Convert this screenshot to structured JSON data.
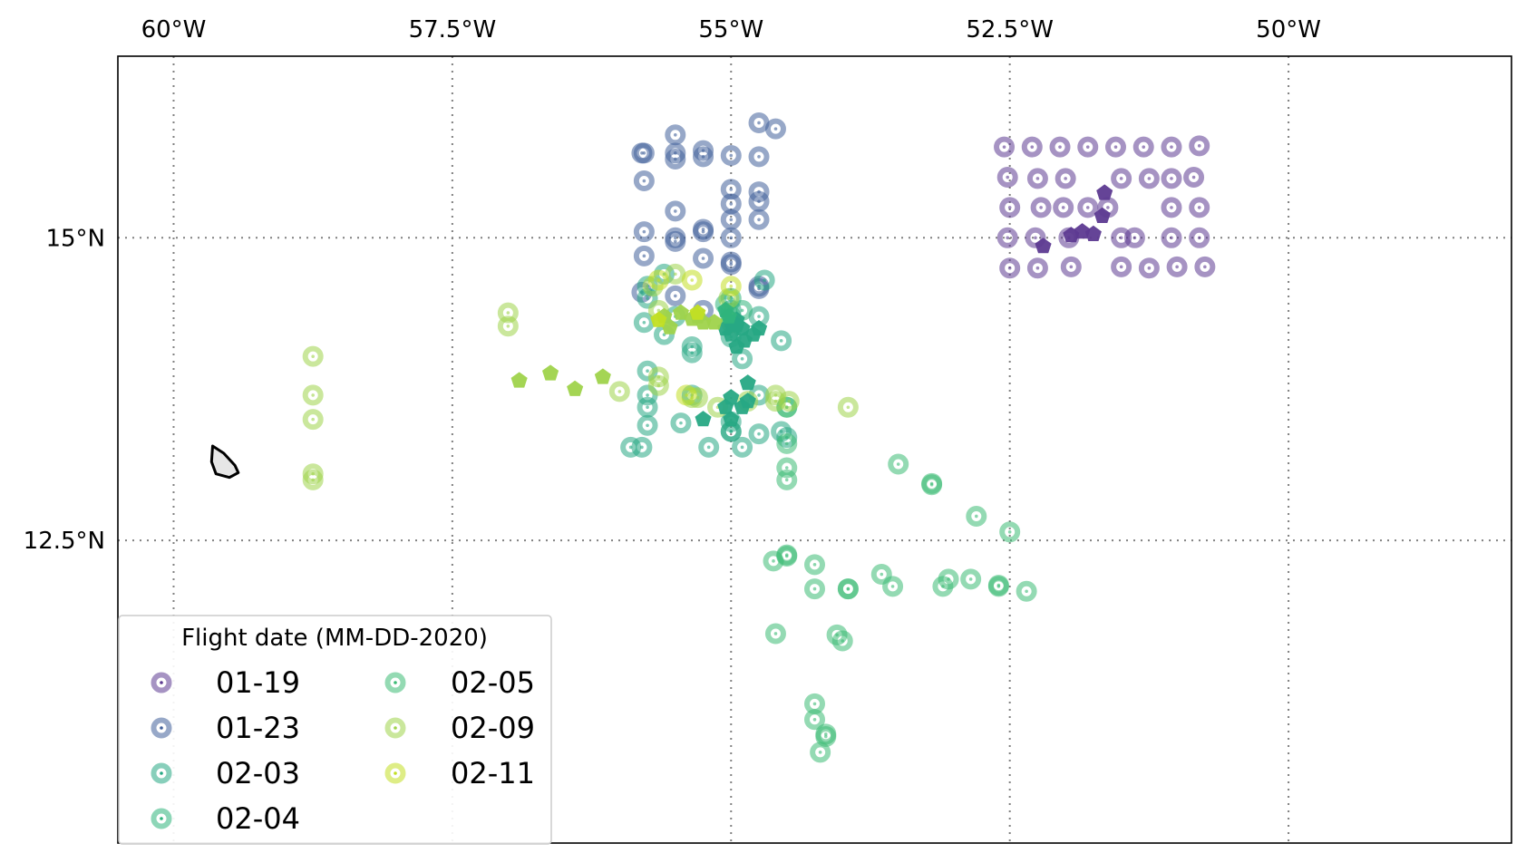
{
  "chart_data": {
    "type": "scatter",
    "projection": "PlateCarree",
    "xlim": [
      -60.5,
      -48.0
    ],
    "ylim": [
      10.0,
      16.5
    ],
    "grid": true,
    "x_ticks": [
      {
        "value": -60,
        "label": "60°W"
      },
      {
        "value": -57.5,
        "label": "57.5°W"
      },
      {
        "value": -55,
        "label": "55°W"
      },
      {
        "value": -52.5,
        "label": "52.5°W"
      },
      {
        "value": -50,
        "label": "50°W"
      }
    ],
    "y_ticks": [
      {
        "value": 15,
        "label": "15°N"
      },
      {
        "value": 12.5,
        "label": "12.5°N"
      }
    ],
    "legend": {
      "title": "Flight date (MM-DD-2020)",
      "location": "lower-left",
      "columns": 2,
      "entries": [
        {
          "label": "01-19",
          "color": "#5d3a91"
        },
        {
          "label": "01-23",
          "color": "#41609a"
        },
        {
          "label": "02-03",
          "color": "#27a884"
        },
        {
          "label": "02-04",
          "color": "#2fb47c"
        },
        {
          "label": "02-05",
          "color": "#3cbb75"
        },
        {
          "label": "02-09",
          "color": "#9fd34b"
        },
        {
          "label": "02-11",
          "color": "#c2df23"
        }
      ]
    },
    "island_outline": [
      [
        -59.65,
        13.28
      ],
      [
        -59.55,
        13.22
      ],
      [
        -59.45,
        13.12
      ],
      [
        -59.42,
        13.06
      ],
      [
        -59.5,
        13.02
      ],
      [
        -59.62,
        13.05
      ],
      [
        -59.66,
        13.15
      ]
    ],
    "series": [
      {
        "name": "01-19",
        "color": "#5d3a91",
        "circles": [
          [
            -52.55,
            15.75
          ],
          [
            -52.3,
            15.75
          ],
          [
            -52.05,
            15.75
          ],
          [
            -51.8,
            15.75
          ],
          [
            -51.55,
            15.75
          ],
          [
            -51.3,
            15.75
          ],
          [
            -51.05,
            15.75
          ],
          [
            -50.8,
            15.76
          ],
          [
            -52.52,
            15.5
          ],
          [
            -52.25,
            15.49
          ],
          [
            -52.0,
            15.49
          ],
          [
            -51.5,
            15.49
          ],
          [
            -51.25,
            15.49
          ],
          [
            -51.05,
            15.49
          ],
          [
            -50.85,
            15.5
          ],
          [
            -52.5,
            15.25
          ],
          [
            -52.22,
            15.25
          ],
          [
            -52.02,
            15.25
          ],
          [
            -51.8,
            15.25
          ],
          [
            -51.62,
            15.25
          ],
          [
            -51.05,
            15.25
          ],
          [
            -50.8,
            15.25
          ],
          [
            -52.52,
            15.0
          ],
          [
            -52.27,
            15.0
          ],
          [
            -51.97,
            15.0
          ],
          [
            -51.5,
            15.0
          ],
          [
            -51.38,
            15.0
          ],
          [
            -51.05,
            15.0
          ],
          [
            -50.8,
            15.0
          ],
          [
            -52.5,
            14.75
          ],
          [
            -52.25,
            14.75
          ],
          [
            -51.95,
            14.76
          ],
          [
            -51.5,
            14.76
          ],
          [
            -51.25,
            14.75
          ],
          [
            -51.0,
            14.76
          ],
          [
            -50.75,
            14.76
          ]
        ],
        "pentagons": [
          [
            -51.65,
            15.37
          ],
          [
            -51.67,
            15.18
          ],
          [
            -52.2,
            14.93
          ],
          [
            -51.95,
            15.02
          ],
          [
            -51.85,
            15.05
          ],
          [
            -51.75,
            15.03
          ]
        ]
      },
      {
        "name": "01-23",
        "color": "#41609a",
        "circles": [
          [
            -55.8,
            15.7
          ],
          [
            -55.78,
            15.7
          ],
          [
            -55.5,
            15.85
          ],
          [
            -55.5,
            15.65
          ],
          [
            -55.5,
            15.7
          ],
          [
            -55.25,
            15.72
          ],
          [
            -55.25,
            15.67
          ],
          [
            -55.0,
            15.68
          ],
          [
            -54.75,
            15.95
          ],
          [
            -54.6,
            15.9
          ],
          [
            -54.75,
            15.67
          ],
          [
            -55.78,
            15.47
          ],
          [
            -55.5,
            15.22
          ],
          [
            -55.25,
            15.07
          ],
          [
            -55.25,
            15.05
          ],
          [
            -55.0,
            15.4
          ],
          [
            -55.0,
            15.28
          ],
          [
            -55.0,
            15.15
          ],
          [
            -54.75,
            15.38
          ],
          [
            -54.75,
            15.3
          ],
          [
            -54.75,
            15.15
          ],
          [
            -55.78,
            15.05
          ],
          [
            -55.5,
            15.0
          ],
          [
            -55.5,
            14.97
          ],
          [
            -55.0,
            15.0
          ],
          [
            -55.78,
            14.85
          ],
          [
            -55.25,
            14.83
          ],
          [
            -55.0,
            14.8
          ],
          [
            -55.0,
            14.78
          ],
          [
            -55.8,
            14.55
          ],
          [
            -55.5,
            14.52
          ],
          [
            -55.25,
            14.4
          ],
          [
            -54.75,
            14.6
          ],
          [
            -54.75,
            14.58
          ]
        ],
        "pentagons": []
      },
      {
        "name": "02-03",
        "color": "#27a884",
        "circles": [
          [
            -55.75,
            14.5
          ],
          [
            -55.78,
            14.3
          ],
          [
            -55.5,
            14.35
          ],
          [
            -55.6,
            14.2
          ],
          [
            -55.35,
            14.1
          ],
          [
            -55.35,
            14.05
          ],
          [
            -55.0,
            14.4
          ],
          [
            -55.0,
            14.3
          ],
          [
            -55.0,
            14.18
          ],
          [
            -54.75,
            14.35
          ],
          [
            -54.9,
            14.0
          ],
          [
            -55.75,
            13.9
          ],
          [
            -55.75,
            13.7
          ],
          [
            -55.75,
            13.6
          ],
          [
            -55.35,
            13.7
          ],
          [
            -54.75,
            13.7
          ],
          [
            -55.75,
            13.45
          ],
          [
            -55.45,
            13.47
          ],
          [
            -55.0,
            13.48
          ],
          [
            -55.0,
            13.4
          ],
          [
            -54.75,
            13.38
          ],
          [
            -55.9,
            13.27
          ],
          [
            -55.8,
            13.27
          ],
          [
            -55.2,
            13.27
          ],
          [
            -55.0,
            13.4
          ],
          [
            -54.9,
            13.27
          ],
          [
            -55.6,
            14.7
          ],
          [
            -55.75,
            14.6
          ],
          [
            -54.7,
            14.65
          ],
          [
            -54.55,
            14.15
          ],
          [
            -54.55,
            13.4
          ],
          [
            -54.5,
            13.35
          ]
        ],
        "pentagons": [
          [
            -55.0,
            14.3
          ],
          [
            -54.95,
            14.32
          ],
          [
            -54.9,
            14.25
          ],
          [
            -55.0,
            14.2
          ],
          [
            -54.88,
            14.15
          ],
          [
            -54.8,
            14.2
          ],
          [
            -54.75,
            14.25
          ],
          [
            -54.95,
            14.1
          ],
          [
            -55.05,
            14.25
          ],
          [
            -54.95,
            14.28
          ],
          [
            -54.85,
            13.8
          ],
          [
            -55.0,
            13.68
          ],
          [
            -55.05,
            13.6
          ],
          [
            -54.85,
            13.65
          ],
          [
            -55.25,
            13.5
          ],
          [
            -55.0,
            13.5
          ],
          [
            -54.9,
            13.6
          ]
        ]
      },
      {
        "name": "02-04",
        "color": "#2fb47c",
        "circles": [
          [
            -55.0,
            14.35
          ],
          [
            -55.05,
            14.45
          ],
          [
            -55.0,
            14.5
          ],
          [
            -54.9,
            14.4
          ]
        ],
        "pentagons": [
          [
            -55.05,
            14.4
          ],
          [
            -55.02,
            14.35
          ]
        ]
      },
      {
        "name": "02-05",
        "color": "#3cbb75",
        "circles": [
          [
            -54.5,
            13.6
          ],
          [
            -54.5,
            13.6
          ],
          [
            -54.5,
            13.3
          ],
          [
            -54.5,
            13.1
          ],
          [
            -54.5,
            13.0
          ],
          [
            -54.5,
            12.38
          ],
          [
            -54.5,
            12.37
          ],
          [
            -54.62,
            12.33
          ],
          [
            -54.25,
            12.3
          ],
          [
            -54.25,
            12.1
          ],
          [
            -53.95,
            12.1
          ],
          [
            -53.95,
            12.1
          ],
          [
            -53.65,
            12.22
          ],
          [
            -53.55,
            12.12
          ],
          [
            -53.1,
            12.12
          ],
          [
            -53.05,
            12.18
          ],
          [
            -52.85,
            12.18
          ],
          [
            -52.6,
            12.12
          ],
          [
            -52.6,
            12.13
          ],
          [
            -52.35,
            12.08
          ],
          [
            -53.5,
            13.13
          ],
          [
            -53.2,
            12.97
          ],
          [
            -53.2,
            12.96
          ],
          [
            -52.8,
            12.7
          ],
          [
            -52.5,
            12.57
          ],
          [
            -54.6,
            11.73
          ],
          [
            -54.05,
            11.72
          ],
          [
            -54.0,
            11.67
          ],
          [
            -54.25,
            11.15
          ],
          [
            -54.25,
            11.02
          ],
          [
            -54.15,
            10.9
          ],
          [
            -54.15,
            10.88
          ],
          [
            -54.2,
            10.75
          ]
        ],
        "pentagons": []
      },
      {
        "name": "02-09",
        "color": "#9fd34b",
        "circles": [
          [
            -58.75,
            14.02
          ],
          [
            -58.75,
            13.7
          ],
          [
            -58.75,
            13.5
          ],
          [
            -58.75,
            13.05
          ],
          [
            -58.75,
            13.0
          ],
          [
            -57.0,
            14.38
          ],
          [
            -57.0,
            14.27
          ],
          [
            -55.7,
            14.6
          ],
          [
            -55.65,
            14.4
          ],
          [
            -55.65,
            13.85
          ],
          [
            -55.65,
            13.78
          ],
          [
            -55.5,
            14.7
          ],
          [
            -55.3,
            13.68
          ],
          [
            -55.35,
            13.68
          ],
          [
            -55.0,
            14.3
          ],
          [
            -55.02,
            14.5
          ],
          [
            -54.6,
            13.7
          ],
          [
            -54.6,
            13.65
          ],
          [
            -54.48,
            13.65
          ],
          [
            -55.12,
            13.6
          ],
          [
            -54.85,
            13.65
          ],
          [
            -53.95,
            13.6
          ],
          [
            -56.0,
            13.73
          ]
        ],
        "pentagons": [
          [
            -55.6,
            14.35
          ],
          [
            -55.45,
            14.38
          ],
          [
            -55.3,
            14.35
          ],
          [
            -55.25,
            14.3
          ],
          [
            -55.35,
            14.33
          ],
          [
            -55.55,
            14.26
          ],
          [
            -55.15,
            14.3
          ],
          [
            -56.9,
            13.82
          ],
          [
            -56.62,
            13.88
          ],
          [
            -56.15,
            13.85
          ],
          [
            -56.4,
            13.75
          ]
        ]
      },
      {
        "name": "02-11",
        "color": "#c2df23",
        "circles": [
          [
            -55.65,
            14.65
          ],
          [
            -55.35,
            14.65
          ],
          [
            -55.0,
            14.6
          ],
          [
            -55.4,
            13.7
          ]
        ],
        "pentagons": [
          [
            -55.65,
            14.32
          ],
          [
            -55.3,
            14.38
          ]
        ]
      }
    ]
  }
}
